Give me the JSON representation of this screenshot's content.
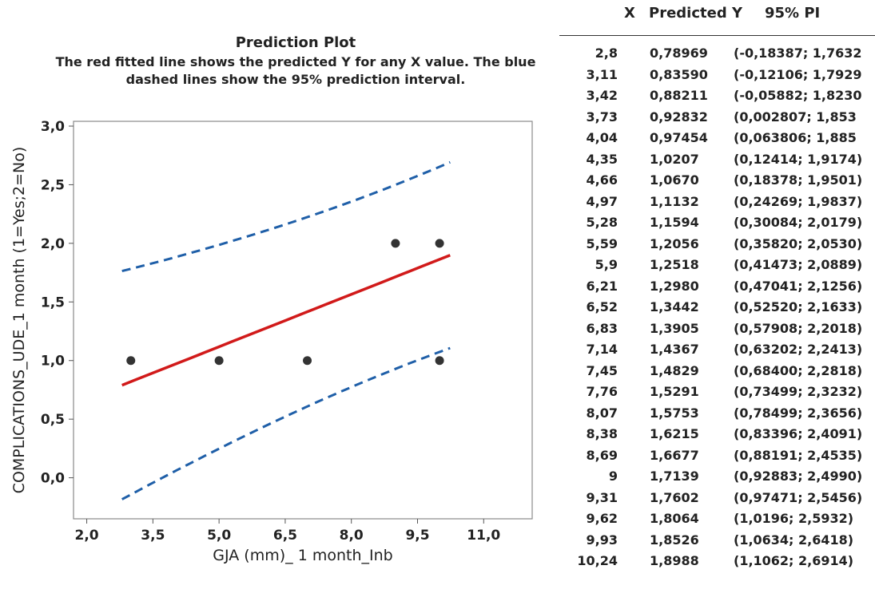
{
  "chart_data": {
    "type": "scatter",
    "title": "Prediction Plot",
    "subtitle_lines": [
      "The red fitted line shows the predicted Y for any X value. The blue",
      "dashed lines show the 95% prediction interval."
    ],
    "xlabel": "GJA (mm)_ 1 month_Inb",
    "ylabel": "COMPLICATIONS_UDE_1 month (1=Yes;2=No)",
    "xlim": [
      1.7,
      12.1
    ],
    "ylim": [
      -0.35,
      3.0
    ],
    "xticks": [
      2.0,
      3.5,
      5.0,
      6.5,
      8.0,
      9.5,
      11.0
    ],
    "xtick_labels": [
      "2,0",
      "3,5",
      "5,0",
      "6,5",
      "8,0",
      "9,5",
      "11,0"
    ],
    "yticks": [
      0.0,
      0.5,
      1.0,
      1.5,
      2.0,
      2.5,
      3.0
    ],
    "ytick_labels": [
      "0,0",
      "0,5",
      "1,0",
      "1,5",
      "2,0",
      "2,5",
      "3,0"
    ],
    "grid": false,
    "points": [
      {
        "x": 3.0,
        "y": 1.0
      },
      {
        "x": 5.0,
        "y": 1.0
      },
      {
        "x": 7.0,
        "y": 1.0
      },
      {
        "x": 9.0,
        "y": 2.0
      },
      {
        "x": 10.0,
        "y": 2.0
      },
      {
        "x": 10.0,
        "y": 1.0
      }
    ],
    "fit": {
      "x": [
        2.8,
        3.11,
        3.42,
        3.73,
        4.04,
        4.35,
        4.66,
        4.97,
        5.28,
        5.59,
        5.9,
        6.21,
        6.52,
        6.83,
        7.14,
        7.45,
        7.76,
        8.07,
        8.38,
        8.69,
        9.0,
        9.31,
        9.62,
        9.93,
        10.24
      ],
      "y": [
        0.78969,
        0.8359,
        0.88211,
        0.92832,
        0.97454,
        1.0207,
        1.067,
        1.1132,
        1.1594,
        1.2056,
        1.2518,
        1.298,
        1.3442,
        1.3905,
        1.4367,
        1.4829,
        1.5291,
        1.5753,
        1.6215,
        1.6677,
        1.7139,
        1.7602,
        1.8064,
        1.8526,
        1.8988
      ],
      "pi_lower": [
        -0.18387,
        -0.12106,
        -0.05882,
        0.002807,
        0.063806,
        0.12414,
        0.18378,
        0.24269,
        0.30084,
        0.3582,
        0.41473,
        0.47041,
        0.5252,
        0.57908,
        0.63202,
        0.684,
        0.73499,
        0.78499,
        0.83396,
        0.88191,
        0.92883,
        0.97471,
        1.0196,
        1.0634,
        1.1062
      ],
      "pi_upper": [
        1.7632,
        1.7929,
        1.823,
        1.853,
        1.885,
        1.9174,
        1.9501,
        1.9837,
        2.0179,
        2.053,
        2.0889,
        2.1256,
        2.1633,
        2.2018,
        2.2413,
        2.2818,
        2.3232,
        2.3656,
        2.4091,
        2.4535,
        2.499,
        2.5456,
        2.5932,
        2.6418,
        2.6914
      ],
      "line_color": "#d11a1a",
      "pi_color": "#1f5fa8",
      "point_color": "#333333"
    }
  },
  "prediction_table": {
    "headers": {
      "x": "X",
      "y": "Predicted Y",
      "pi": "95% PI"
    },
    "rows": [
      {
        "x": "2,8",
        "y": "0,78969",
        "pi": "(-0,18387; 1,7632"
      },
      {
        "x": "3,11",
        "y": "0,83590",
        "pi": "(-0,12106; 1,7929"
      },
      {
        "x": "3,42",
        "y": "0,88211",
        "pi": "(-0,05882; 1,8230"
      },
      {
        "x": "3,73",
        "y": "0,92832",
        "pi": "(0,002807; 1,853"
      },
      {
        "x": "4,04",
        "y": "0,97454",
        "pi": "(0,063806; 1,885"
      },
      {
        "x": "4,35",
        "y": "1,0207",
        "pi": "(0,12414; 1,9174)"
      },
      {
        "x": "4,66",
        "y": "1,0670",
        "pi": "(0,18378; 1,9501)"
      },
      {
        "x": "4,97",
        "y": "1,1132",
        "pi": "(0,24269; 1,9837)"
      },
      {
        "x": "5,28",
        "y": "1,1594",
        "pi": "(0,30084; 2,0179)"
      },
      {
        "x": "5,59",
        "y": "1,2056",
        "pi": "(0,35820; 2,0530)"
      },
      {
        "x": "5,9",
        "y": "1,2518",
        "pi": "(0,41473; 2,0889)"
      },
      {
        "x": "6,21",
        "y": "1,2980",
        "pi": "(0,47041; 2,1256)"
      },
      {
        "x": "6,52",
        "y": "1,3442",
        "pi": "(0,52520; 2,1633)"
      },
      {
        "x": "6,83",
        "y": "1,3905",
        "pi": "(0,57908; 2,2018)"
      },
      {
        "x": "7,14",
        "y": "1,4367",
        "pi": "(0,63202; 2,2413)"
      },
      {
        "x": "7,45",
        "y": "1,4829",
        "pi": "(0,68400; 2,2818)"
      },
      {
        "x": "7,76",
        "y": "1,5291",
        "pi": "(0,73499; 2,3232)"
      },
      {
        "x": "8,07",
        "y": "1,5753",
        "pi": "(0,78499; 2,3656)"
      },
      {
        "x": "8,38",
        "y": "1,6215",
        "pi": "(0,83396; 2,4091)"
      },
      {
        "x": "8,69",
        "y": "1,6677",
        "pi": "(0,88191; 2,4535)"
      },
      {
        "x": "9",
        "y": "1,7139",
        "pi": "(0,92883; 2,4990)"
      },
      {
        "x": "9,31",
        "y": "1,7602",
        "pi": "(0,97471; 2,5456)"
      },
      {
        "x": "9,62",
        "y": "1,8064",
        "pi": "(1,0196; 2,5932)"
      },
      {
        "x": "9,93",
        "y": "1,8526",
        "pi": "(1,0634; 2,6418)"
      },
      {
        "x": "10,24",
        "y": "1,8988",
        "pi": "(1,1062; 2,6914)"
      }
    ]
  }
}
